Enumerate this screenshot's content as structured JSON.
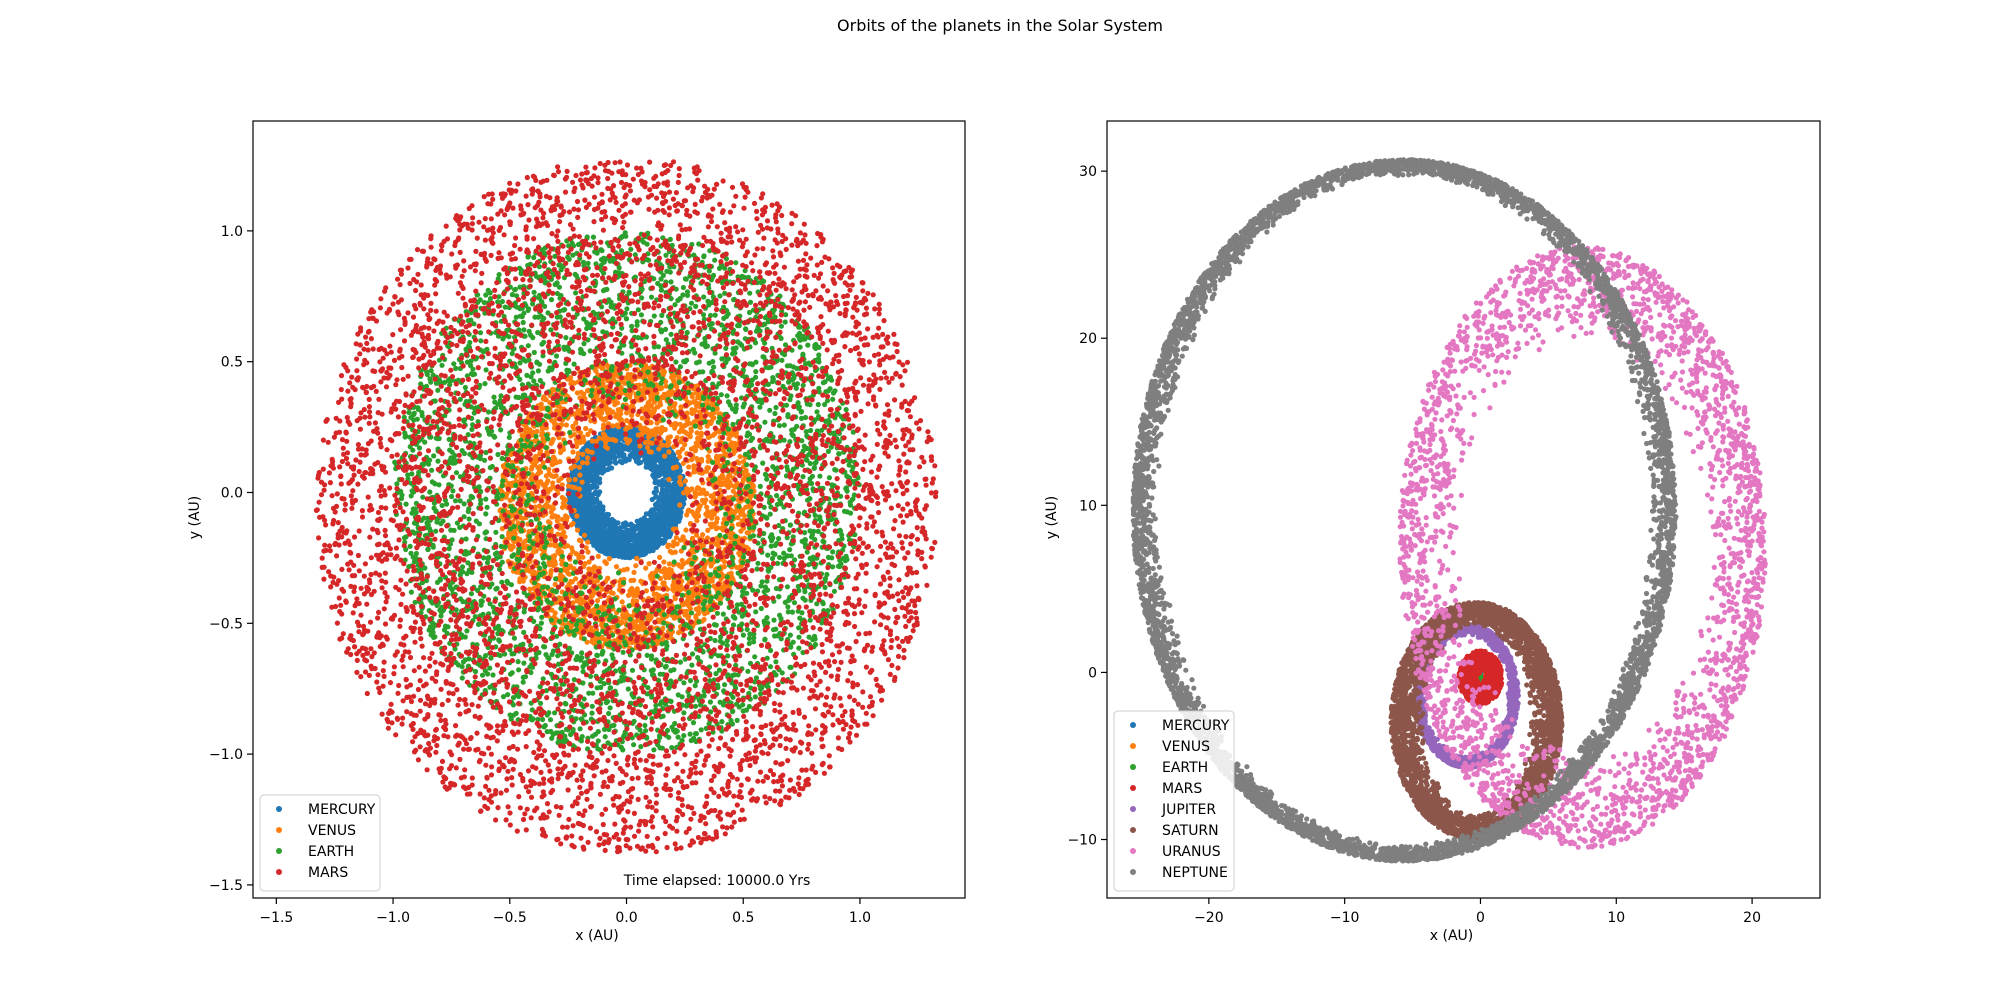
{
  "figure": {
    "suptitle": "Orbits of the planets in the Solar System"
  },
  "chart_data": [
    {
      "type": "scatter",
      "title": "",
      "xlabel": "x (AU)",
      "ylabel": "y (AU)",
      "xlim": [
        -1.6,
        1.45
      ],
      "ylim": [
        -1.55,
        1.42
      ],
      "xticks": [
        -1.5,
        -1.0,
        -0.5,
        0.0,
        0.5,
        1.0
      ],
      "xtick_labels": [
        "−1.5",
        "−1.0",
        "−0.5",
        "0.0",
        "0.5",
        "1.0"
      ],
      "yticks": [
        -1.5,
        -1.0,
        -0.5,
        0.0,
        0.5,
        1.0
      ],
      "ytick_labels": [
        "−1.5",
        "−1.0",
        "−0.5",
        "0.0",
        "0.5",
        "1.0"
      ],
      "grid": false,
      "legend_position": "bottom-left",
      "annotation": "Time elapsed: 10000.0 Yrs",
      "series": [
        {
          "name": "MERCURY",
          "color": "#1f77b4",
          "ring": {
            "cx": 0.0,
            "cy": 0.0,
            "r_min": 0.11,
            "r_max": 0.25
          }
        },
        {
          "name": "VENUS",
          "color": "#ff7f0e",
          "ring": {
            "cx": 0.0,
            "cy": -0.05,
            "r_min": 0.2,
            "r_max": 0.55
          }
        },
        {
          "name": "EARTH",
          "color": "#2ca02c",
          "ring": {
            "cx": 0.0,
            "cy": 0.0,
            "r_min": 0.3,
            "r_max": 1.0
          }
        },
        {
          "name": "MARS",
          "color": "#d62728",
          "ring": {
            "cx": 0.0,
            "cy": -0.05,
            "r_min": 0.2,
            "r_max": 1.33
          }
        }
      ]
    },
    {
      "type": "scatter",
      "title": "",
      "xlabel": "x (AU)",
      "ylabel": "y (AU)",
      "xlim": [
        -27.5,
        25
      ],
      "ylim": [
        -13.5,
        33
      ],
      "xticks": [
        -20,
        -10,
        0,
        10,
        20
      ],
      "xtick_labels": [
        "−20",
        "−10",
        "0",
        "10",
        "20"
      ],
      "yticks": [
        -10,
        0,
        10,
        20,
        30
      ],
      "ytick_labels": [
        "−10",
        "0",
        "10",
        "20",
        "30"
      ],
      "grid": false,
      "legend_position": "bottom-left",
      "series": [
        {
          "name": "MERCURY",
          "color": "#1f77b4",
          "ring": {
            "cx": 0.0,
            "cy": 0.0,
            "r_min": 0.2,
            "r_max": 0.45
          }
        },
        {
          "name": "VENUS",
          "color": "#ff7f0e",
          "ring": {
            "cx": 0.0,
            "cy": 0.0,
            "r_min": 0.3,
            "r_max": 0.72
          }
        },
        {
          "name": "EARTH",
          "color": "#2ca02c",
          "ring": {
            "cx": 0.0,
            "cy": 0.0,
            "r_min": 0.2,
            "r_max": 1.0
          }
        },
        {
          "name": "MARS",
          "color": "#d62728",
          "ring": {
            "cx": 0.0,
            "cy": -0.3,
            "r_min": 0.2,
            "r_max": 1.6
          }
        },
        {
          "name": "JUPITER",
          "color": "#9467bd",
          "ring": {
            "cx": -1.0,
            "cy": -1.4,
            "rx_min": 3.0,
            "rx_max": 3.8,
            "ry_min": 3.6,
            "ry_max": 4.3
          }
        },
        {
          "name": "SATURN",
          "color": "#8c564b",
          "ring": {
            "cx": -0.3,
            "cy": -2.9,
            "rx_min": 3.8,
            "rx_max": 6.3,
            "ry_min": 5.6,
            "ry_max": 7.1
          }
        },
        {
          "name": "URANUS",
          "color": "#e377c2",
          "ring": {
            "cx": 7.5,
            "cy": 7.5,
            "rx_min": 9.0,
            "rx_max": 13.5,
            "ry_min": 12.0,
            "ry_max": 18.0
          }
        },
        {
          "name": "NEPTUNE",
          "color": "#7f7f7f",
          "ring": {
            "cx": -5.6,
            "cy": 9.7,
            "rx_min": 18.0,
            "rx_max": 20.0,
            "ry_min": 20.0,
            "ry_max": 21.0
          }
        }
      ]
    }
  ]
}
